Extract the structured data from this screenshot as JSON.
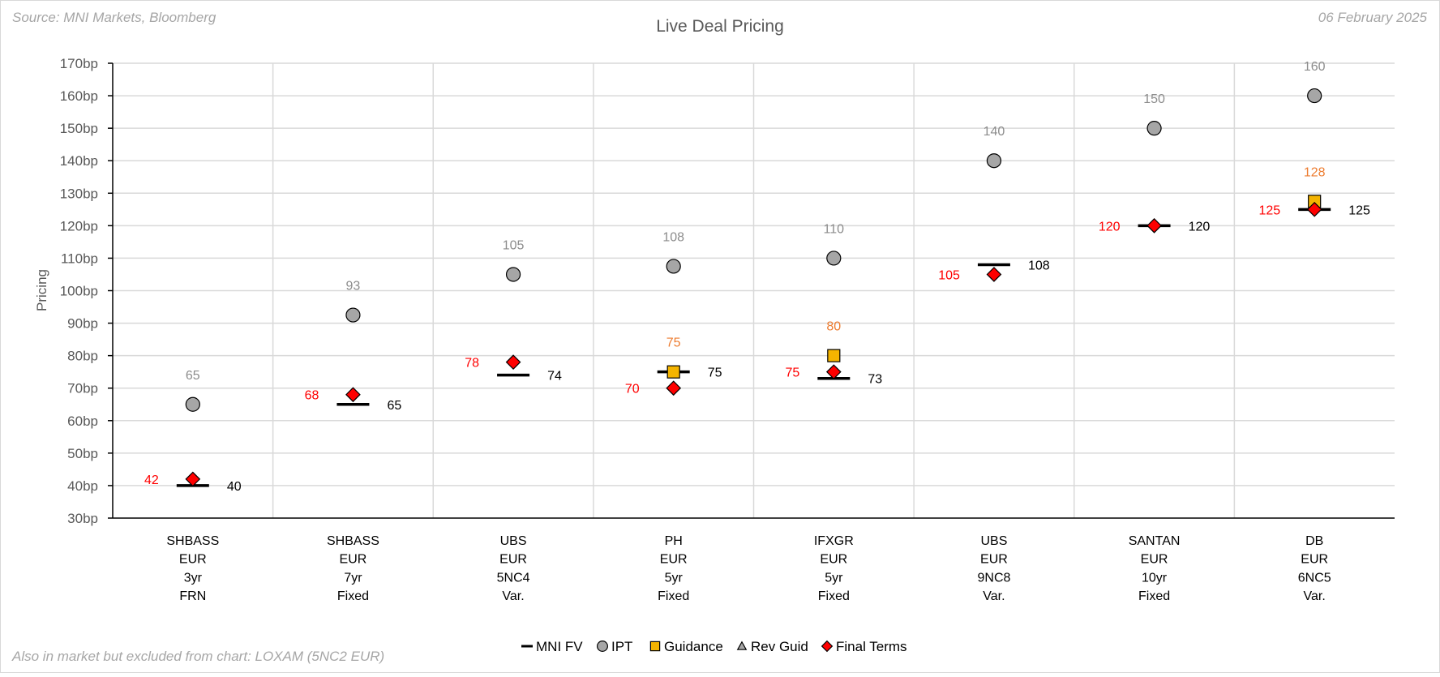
{
  "chart_data": {
    "type": "scatter",
    "title": "Live Deal Pricing",
    "source": "Source: MNI Markets, Bloomberg",
    "date": "06 February 2025",
    "footnote": "Also in market but excluded from chart: LOXAM (5NC2 EUR)",
    "ylabel": "Pricing",
    "ylim": [
      30,
      170
    ],
    "ytick_step": 10,
    "ytick_suffix": "bp",
    "categories": [
      [
        "SHBASS",
        "EUR",
        "3yr",
        "FRN"
      ],
      [
        "SHBASS",
        "EUR",
        "7yr",
        "Fixed"
      ],
      [
        "UBS",
        "EUR",
        "5NC4",
        "Var."
      ],
      [
        "PH",
        "EUR",
        "5yr",
        "Fixed"
      ],
      [
        "IFXGR",
        "EUR",
        "5yr",
        "Fixed"
      ],
      [
        "UBS",
        "EUR",
        "9NC8",
        "Var."
      ],
      [
        "SANTAN",
        "EUR",
        "10yr",
        "Fixed"
      ],
      [
        "DB",
        "EUR",
        "6NC5",
        "Var."
      ]
    ],
    "series": [
      {
        "name": "MNI FV",
        "color": "#000000",
        "marker": "dash",
        "values": [
          40,
          65,
          74,
          75,
          73,
          108,
          120,
          125
        ],
        "labels": [
          "40",
          "65",
          "74",
          "75",
          "73",
          "108",
          "120",
          "125"
        ]
      },
      {
        "name": "IPT",
        "color": "#a6a6a6",
        "marker": "circle",
        "values": [
          65,
          92.5,
          105,
          107.5,
          110,
          140,
          150,
          160
        ],
        "labels": [
          "65",
          "93",
          "105",
          "108",
          "110",
          "140",
          "150",
          "160"
        ]
      },
      {
        "name": "Guidance",
        "color": "#f4b400",
        "label_color": "#ed7d31",
        "marker": "square",
        "values": [
          null,
          null,
          null,
          75,
          80,
          null,
          null,
          127.5
        ],
        "labels": [
          null,
          null,
          null,
          "75",
          "80",
          null,
          null,
          "128"
        ]
      },
      {
        "name": "Rev Guid",
        "color": "#a6a6a6",
        "marker": "triangle",
        "values": [
          null,
          null,
          null,
          null,
          null,
          null,
          null,
          null
        ],
        "labels": [
          null,
          null,
          null,
          null,
          null,
          null,
          null,
          null
        ]
      },
      {
        "name": "Final Terms",
        "color": "#ff0000",
        "marker": "diamond",
        "values": [
          42,
          68,
          78,
          70,
          75,
          105,
          120,
          125
        ],
        "labels": [
          "42",
          "68",
          "78",
          "70",
          "75",
          "105",
          "120",
          "125"
        ]
      }
    ],
    "legend": [
      "MNI FV",
      "IPT",
      "Guidance",
      "Rev Guid",
      "Final Terms"
    ],
    "legend_position": "bottom-center",
    "grid": true
  }
}
